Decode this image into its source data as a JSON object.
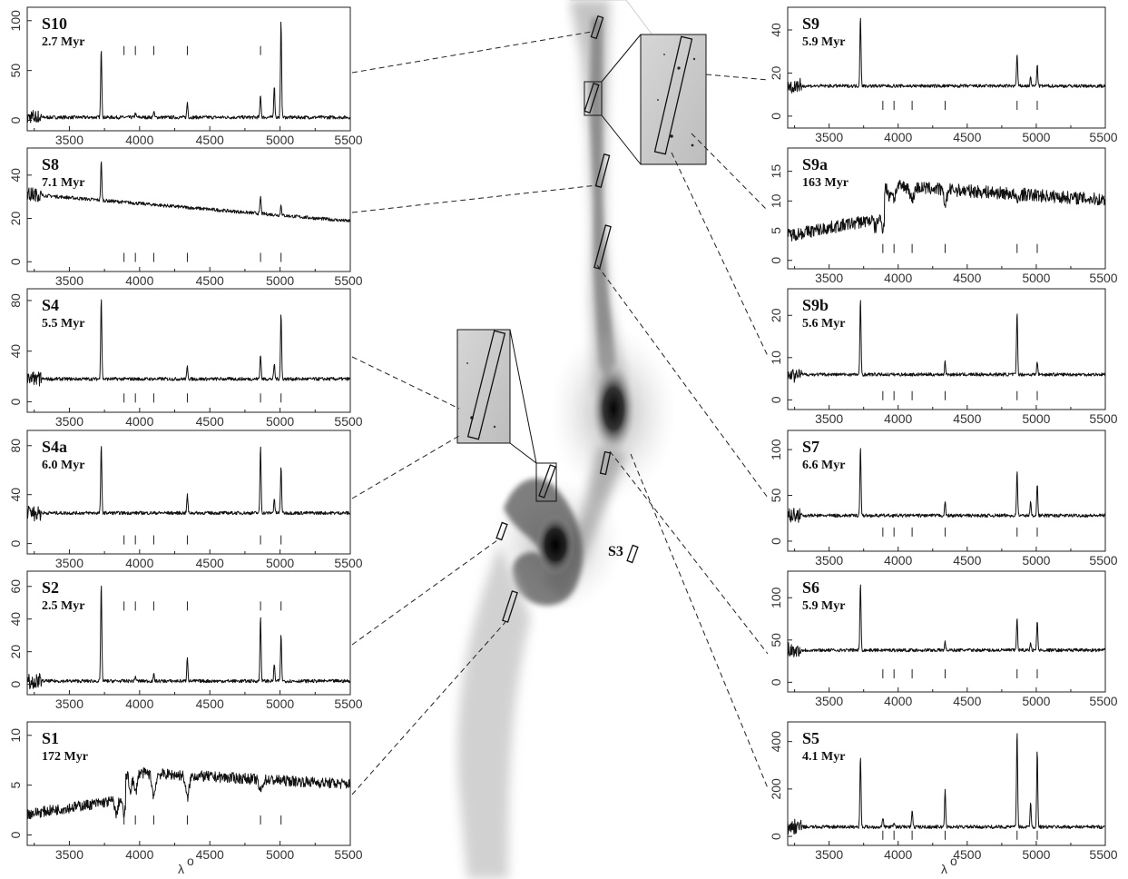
{
  "axis_label": "λ",
  "axis_label_sub": "o",
  "image_label": "S3",
  "x_ticks": [
    "3500",
    "4000",
    "4500",
    "5000",
    "5500"
  ],
  "chart_data": [
    {
      "type": "line",
      "name": "S10",
      "age": "2.7 Myr",
      "y_ticks": [
        "0",
        "50",
        "100"
      ],
      "xlim": [
        3200,
        5500
      ],
      "ylim": [
        -5,
        108
      ],
      "continuum": 3,
      "marker_level": 70,
      "lines": [
        [
          3727,
          70
        ],
        [
          3970,
          4
        ],
        [
          4101,
          6
        ],
        [
          4340,
          15
        ],
        [
          4861,
          23
        ],
        [
          4959,
          32
        ],
        [
          5007,
          97
        ]
      ]
    },
    {
      "type": "line",
      "name": "S8",
      "age": "7.1 Myr",
      "y_ticks": [
        "0",
        "20",
        "40"
      ],
      "xlim": [
        3200,
        5500
      ],
      "ylim": [
        -2,
        50
      ],
      "continuum": 25,
      "marker_level": 2,
      "lines": [
        [
          3727,
          18
        ],
        [
          4861,
          8
        ],
        [
          5007,
          5
        ]
      ]
    },
    {
      "type": "line",
      "name": "S4",
      "age": "5.5 Myr",
      "y_ticks": [
        "0",
        "40",
        "80"
      ],
      "xlim": [
        3200,
        5500
      ],
      "ylim": [
        -4,
        85
      ],
      "continuum": 18,
      "marker_level": 3,
      "lines": [
        [
          3727,
          65
        ],
        [
          4340,
          10
        ],
        [
          4861,
          20
        ],
        [
          4959,
          12
        ],
        [
          5007,
          52
        ]
      ]
    },
    {
      "type": "line",
      "name": "S4a",
      "age": "6.0 Myr",
      "y_ticks": [
        "0",
        "40",
        "80"
      ],
      "xlim": [
        3200,
        5500
      ],
      "ylim": [
        -4,
        88
      ],
      "continuum": 25,
      "marker_level": 3,
      "lines": [
        [
          3727,
          55
        ],
        [
          4340,
          15
        ],
        [
          4861,
          55
        ],
        [
          4959,
          12
        ],
        [
          5007,
          38
        ]
      ]
    },
    {
      "type": "line",
      "name": "S2",
      "age": "2.5 Myr",
      "y_ticks": [
        "0",
        "20",
        "40",
        "60"
      ],
      "xlim": [
        3200,
        5500
      ],
      "ylim": [
        -3,
        66
      ],
      "continuum": 2,
      "marker_level": 48,
      "lines": [
        [
          3727,
          60
        ],
        [
          3970,
          3
        ],
        [
          4101,
          4
        ],
        [
          4340,
          15
        ],
        [
          4861,
          40
        ],
        [
          4959,
          10
        ],
        [
          5007,
          28
        ]
      ]
    },
    {
      "type": "line",
      "name": "S1",
      "age": "172 Myr",
      "y_ticks": [
        "0",
        "5",
        "10"
      ],
      "xlim": [
        3200,
        5500
      ],
      "ylim": [
        -0.5,
        10.8
      ],
      "continuum": 6,
      "marker_level": 1.5,
      "lines": []
    },
    {
      "type": "line",
      "name": "S9",
      "age": "5.9 Myr",
      "y_ticks": [
        "0",
        "20",
        "40"
      ],
      "xlim": [
        3200,
        5500
      ],
      "ylim": [
        -3,
        48
      ],
      "continuum": 14,
      "marker_level": 5,
      "lines": [
        [
          3727,
          33
        ],
        [
          4861,
          15
        ],
        [
          4959,
          4
        ],
        [
          5007,
          10
        ]
      ]
    },
    {
      "type": "line",
      "name": "S9a",
      "age": "163 Myr",
      "y_ticks": [
        "0",
        "5",
        "10",
        "15"
      ],
      "xlim": [
        3200,
        5500
      ],
      "ylim": [
        -0.5,
        18
      ],
      "continuum": 12,
      "marker_level": 2,
      "lines": []
    },
    {
      "type": "line",
      "name": "S9b",
      "age": "5.6 Myr",
      "y_ticks": [
        "0",
        "10",
        "20"
      ],
      "xlim": [
        3200,
        5500
      ],
      "ylim": [
        -1,
        25
      ],
      "continuum": 6,
      "marker_level": 1,
      "lines": [
        [
          3727,
          18
        ],
        [
          4340,
          3
        ],
        [
          4861,
          15
        ],
        [
          5007,
          3
        ]
      ]
    },
    {
      "type": "line",
      "name": "S7",
      "age": "6.6 Myr",
      "y_ticks": [
        "0",
        "50",
        "100"
      ],
      "xlim": [
        3200,
        5500
      ],
      "ylim": [
        -5,
        115
      ],
      "continuum": 28,
      "marker_level": 10,
      "lines": [
        [
          3727,
          75
        ],
        [
          4340,
          15
        ],
        [
          4861,
          50
        ],
        [
          4959,
          15
        ],
        [
          5007,
          35
        ]
      ]
    },
    {
      "type": "line",
      "name": "S6",
      "age": "5.9 Myr",
      "y_ticks": [
        "0",
        "50",
        "100"
      ],
      "xlim": [
        3200,
        5500
      ],
      "ylim": [
        -5,
        125
      ],
      "continuum": 38,
      "marker_level": 10,
      "lines": [
        [
          3727,
          80
        ],
        [
          4340,
          10
        ],
        [
          4861,
          38
        ],
        [
          4959,
          10
        ],
        [
          5007,
          35
        ]
      ]
    },
    {
      "type": "line",
      "name": "S5",
      "age": "4.1 Myr",
      "y_ticks": [
        "0",
        "200",
        "400"
      ],
      "xlim": [
        3200,
        5500
      ],
      "ylim": [
        -15,
        460
      ],
      "continuum": 40,
      "marker_level": 5,
      "lines": [
        [
          3727,
          305
        ],
        [
          3889,
          40
        ],
        [
          3970,
          20
        ],
        [
          4101,
          70
        ],
        [
          4340,
          160
        ],
        [
          4861,
          410
        ],
        [
          4959,
          110
        ],
        [
          5007,
          320
        ]
      ]
    }
  ]
}
